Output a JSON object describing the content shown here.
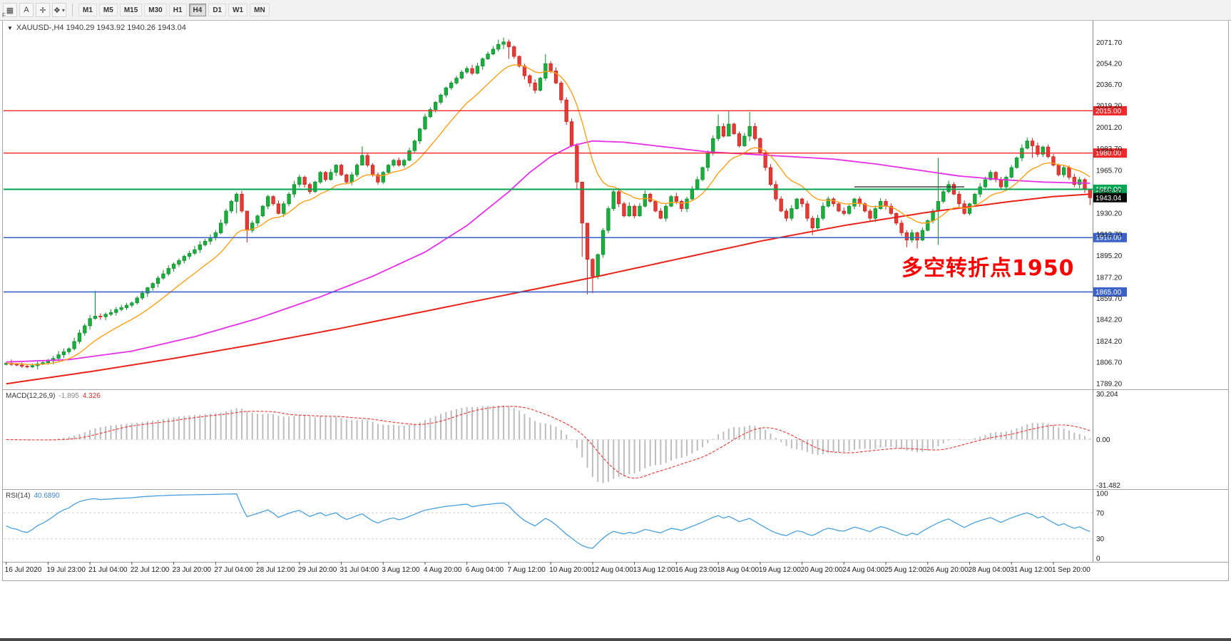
{
  "toolbar": {
    "f_label": "F",
    "icon_buttons": [
      {
        "name": "chart-grid",
        "glyph": "▦"
      },
      {
        "name": "text-tool",
        "glyph": "A"
      },
      {
        "name": "crosshair-tool",
        "glyph": "✛"
      },
      {
        "name": "objects-tool",
        "glyph": "❖",
        "caret": "▾"
      }
    ],
    "timeframes": [
      "M1",
      "M5",
      "M15",
      "M30",
      "H1",
      "H4",
      "D1",
      "W1",
      "MN"
    ],
    "active_timeframe": "H4"
  },
  "chart": {
    "collapse_glyph": "▼",
    "title": "XAUUSD-,H4  1940.29 1943.92 1940.26 1943.04",
    "ohlc": {
      "open": "1940.29",
      "high": "1943.92",
      "low": "1940.26",
      "close": "1943.04"
    }
  },
  "annotation": {
    "text": "多空转折点1950",
    "color": "#ff0000"
  },
  "macd": {
    "label": "MACD(12,26,9)",
    "value_macd": "-1.895",
    "value_signal": "4.326",
    "axis_max": "30.204",
    "axis_zero": "0.00",
    "axis_min": "-31.482",
    "fast": 12,
    "slow": 26,
    "signal": 9
  },
  "rsi": {
    "label": "RSI(14)",
    "value": "40.6890",
    "period": 14,
    "axis": [
      {
        "v": 100,
        "l": "100"
      },
      {
        "v": 70,
        "l": "70"
      },
      {
        "v": 30,
        "l": "30"
      },
      {
        "v": 0,
        "l": "0"
      }
    ],
    "levels": [
      70,
      30
    ]
  },
  "chart_data": {
    "type": "candlestick",
    "symbol": "XAUUSD",
    "timeframe": "H4",
    "price_range": [
      1785,
      2089
    ],
    "open_first": 1805,
    "closes": [
      1806,
      1805,
      1804.5,
      1803.5,
      1803,
      1804,
      1805.5,
      1806.5,
      1808,
      1810,
      1813,
      1815.5,
      1818,
      1824,
      1831,
      1837,
      1843,
      1845,
      1844.5,
      1846.5,
      1848,
      1850.5,
      1852,
      1854,
      1856,
      1860,
      1864,
      1868.5,
      1872,
      1876.5,
      1880,
      1884.5,
      1888,
      1891,
      1894.5,
      1897,
      1900,
      1904,
      1907,
      1910,
      1914,
      1922,
      1932,
      1940,
      1946,
      1932,
      1916,
      1922,
      1928,
      1936,
      1944,
      1938,
      1930,
      1938,
      1946,
      1954,
      1960,
      1954,
      1948,
      1956,
      1964,
      1958,
      1964,
      1970,
      1962,
      1956,
      1962,
      1970,
      1978,
      1970,
      1962,
      1956,
      1964,
      1970,
      1974,
      1970,
      1974,
      1982,
      1990,
      2000,
      2010,
      2016,
      2022,
      2028,
      2034,
      2038,
      2042,
      2047,
      2050,
      2046,
      2052,
      2058,
      2062,
      2066,
      2070,
      2072,
      2068,
      2060,
      2052,
      2044,
      2038,
      2032,
      2042,
      2054,
      2048,
      2038,
      2024,
      2006,
      1986,
      1956,
      1922,
      1892,
      1878,
      1896,
      1916,
      1934,
      1948,
      1938,
      1928,
      1936,
      1928,
      1936,
      1946,
      1940,
      1932,
      1926,
      1936,
      1944,
      1940,
      1934,
      1942,
      1950,
      1958,
      1968,
      1980,
      1992,
      2002,
      1994,
      2004,
      1996,
      1986,
      1994,
      2002,
      1992,
      1980,
      1968,
      1954,
      1942,
      1932,
      1926,
      1934,
      1942,
      1938,
      1926,
      1918,
      1926,
      1936,
      1942,
      1938,
      1932,
      1930,
      1936,
      1942,
      1938,
      1932,
      1926,
      1934,
      1940,
      1936,
      1930,
      1922,
      1914,
      1908,
      1914,
      1908,
      1916,
      1924,
      1932,
      1940,
      1948,
      1954,
      1946,
      1938,
      1930,
      1938,
      1946,
      1952,
      1958,
      1964,
      1958,
      1952,
      1960,
      1968,
      1976,
      1984,
      1990,
      1986,
      1979,
      1985,
      1977,
      1970,
      1962,
      1968,
      1960,
      1954,
      1958,
      1950,
      1943
    ],
    "wick_overrides": {
      "17": [
        1866,
        1842
      ],
      "44": [
        1947.5,
        1930
      ],
      "46": [
        1924,
        1906
      ],
      "68": [
        1985.5,
        1974
      ],
      "94": [
        2074,
        2064
      ],
      "95": [
        2075.5,
        2066
      ],
      "96": [
        2074,
        2058
      ],
      "103": [
        2062,
        2040
      ],
      "109": [
        1988,
        1950
      ],
      "110": [
        1952,
        1894
      ],
      "111": [
        1898,
        1863
      ],
      "112": [
        1893,
        1864
      ],
      "136": [
        2012,
        1990
      ],
      "138": [
        2015.5,
        1995
      ],
      "142": [
        2014,
        1990
      ],
      "154": [
        1928,
        1912
      ],
      "172": [
        1916,
        1902
      ],
      "174": [
        1915,
        1901
      ],
      "178": [
        1976,
        1904
      ],
      "195": [
        1993,
        1983
      ],
      "196": [
        1992.5,
        1976
      ],
      "207": [
        1949,
        1937
      ]
    },
    "ma_fast_period": 13,
    "ma_mid_anchors": [
      [
        0,
        1807
      ],
      [
        12,
        1809
      ],
      [
        24,
        1816
      ],
      [
        36,
        1828
      ],
      [
        48,
        1843
      ],
      [
        60,
        1861
      ],
      [
        70,
        1878
      ],
      [
        80,
        1898
      ],
      [
        88,
        1920
      ],
      [
        96,
        1948
      ],
      [
        100,
        1964
      ],
      [
        104,
        1977
      ],
      [
        108,
        1986
      ],
      [
        112,
        1990
      ],
      [
        118,
        1989
      ],
      [
        126,
        1985
      ],
      [
        134,
        1981
      ],
      [
        142,
        1979
      ],
      [
        150,
        1977
      ],
      [
        158,
        1975
      ],
      [
        166,
        1971
      ],
      [
        174,
        1966
      ],
      [
        182,
        1961
      ],
      [
        190,
        1958
      ],
      [
        198,
        1956
      ],
      [
        207,
        1955
      ]
    ],
    "ma_slow_anchors": [
      [
        0,
        1789
      ],
      [
        16,
        1799
      ],
      [
        32,
        1810
      ],
      [
        48,
        1822
      ],
      [
        64,
        1835
      ],
      [
        80,
        1849
      ],
      [
        96,
        1863
      ],
      [
        112,
        1877
      ],
      [
        128,
        1892
      ],
      [
        144,
        1907
      ],
      [
        160,
        1920
      ],
      [
        176,
        1931
      ],
      [
        192,
        1940
      ],
      [
        200,
        1944
      ],
      [
        207,
        1946
      ]
    ],
    "colors": {
      "up": "#1aaf3c",
      "up_stroke": "#0c8a2c",
      "down": "#e83a34",
      "down_stroke": "#c0231f",
      "ma_fast": "#ff9f1a",
      "ma_mid": "#e530e5",
      "ma_slow": "#e8231a",
      "macd_hist": "#bdbdbd",
      "macd_signal": "#e53935",
      "rsi": "#4aa0dc",
      "level_red": "#f22727",
      "level_green": "#00a651",
      "level_blue": "#3a62c8",
      "current_tag": "#0a0a0a"
    },
    "levels": [
      {
        "price": 2015.0,
        "label": "2015.00",
        "color": "#f22727",
        "width": 1.4
      },
      {
        "price": 1980.0,
        "label": "1980.00",
        "color": "#f22727",
        "width": 1.4
      },
      {
        "price": 1950.0,
        "label": "1950.00",
        "color": "#00a651",
        "width": 2
      },
      {
        "price": 1910.0,
        "label": "1910.00",
        "color": "#3a62c8",
        "width": 1.6
      },
      {
        "price": 1865.0,
        "label": "1865.00",
        "color": "#3a62c8",
        "width": 1.6
      }
    ],
    "segment": {
      "price": 1952,
      "from": 162,
      "to": 183,
      "color": "#303030"
    },
    "current": {
      "price": 1943.04,
      "label": "1943.04"
    },
    "y_ticks": [
      2071.7,
      2054.2,
      2036.7,
      2019.2,
      2001.2,
      1983.7,
      1965.7,
      1948.2,
      1930.2,
      1912.7,
      1895.2,
      1877.2,
      1859.7,
      1842.2,
      1824.2,
      1806.7,
      1789.2
    ],
    "x_labels": [
      "16 Jul 2020",
      "19 Jul 23:00",
      "21 Jul 04:00",
      "22 Jul 12:00",
      "23 Jul 20:00",
      "27 Jul 04:00",
      "28 Jul 12:00",
      "29 Jul 20:00",
      "31 Jul 04:00",
      "3 Aug 12:00",
      "4 Aug 20:00",
      "6 Aug 04:00",
      "7 Aug 12:00",
      "10 Aug 20:00",
      "12 Aug 04:00",
      "13 Aug 12:00",
      "16 Aug 23:00",
      "18 Aug 04:00",
      "19 Aug 12:00",
      "20 Aug 20:00",
      "24 Aug 04:00",
      "25 Aug 12:00",
      "26 Aug 20:00",
      "28 Aug 04:00",
      "31 Aug 12:00",
      "1 Sep 20:00"
    ],
    "x_label_step": 8
  }
}
